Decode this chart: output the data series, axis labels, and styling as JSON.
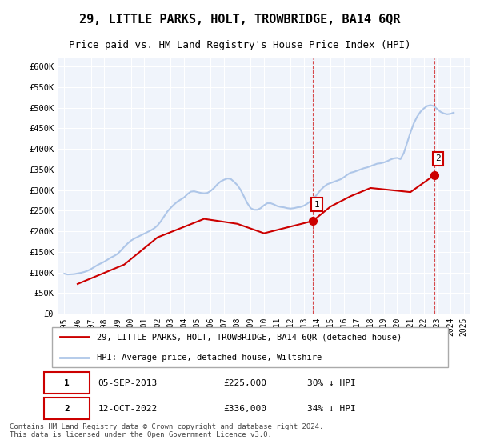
{
  "title": "29, LITTLE PARKS, HOLT, TROWBRIDGE, BA14 6QR",
  "subtitle": "Price paid vs. HM Land Registry's House Price Index (HPI)",
  "xlabel": "",
  "ylabel": "",
  "ylim": [
    0,
    620000
  ],
  "yticks": [
    0,
    50000,
    100000,
    150000,
    200000,
    250000,
    300000,
    350000,
    400000,
    450000,
    500000,
    550000,
    600000
  ],
  "ytick_labels": [
    "£0",
    "£50K",
    "£100K",
    "£150K",
    "£200K",
    "£250K",
    "£300K",
    "£350K",
    "£400K",
    "£450K",
    "£500K",
    "£550K",
    "£600K"
  ],
  "hpi_color": "#aec6e8",
  "property_color": "#cc0000",
  "background_color": "#ffffff",
  "plot_bg_color": "#f0f4fb",
  "grid_color": "#ffffff",
  "marker1_date_x": 2013.67,
  "marker1_y": 225000,
  "marker2_date_x": 2022.78,
  "marker2_y": 336000,
  "legend_property": "29, LITTLE PARKS, HOLT, TROWBRIDGE, BA14 6QR (detached house)",
  "legend_hpi": "HPI: Average price, detached house, Wiltshire",
  "annotation1": "05-SEP-2013    £225,000    30% ↓ HPI",
  "annotation2": "12-OCT-2022    £336,000    34% ↓ HPI",
  "footer": "Contains HM Land Registry data © Crown copyright and database right 2024.\nThis data is licensed under the Open Government Licence v3.0.",
  "dashed_vline1_x": 2013.67,
  "dashed_vline2_x": 2022.78,
  "hpi_data_x": [
    1995.0,
    1995.25,
    1995.5,
    1995.75,
    1996.0,
    1996.25,
    1996.5,
    1996.75,
    1997.0,
    1997.25,
    1997.5,
    1997.75,
    1998.0,
    1998.25,
    1998.5,
    1998.75,
    1999.0,
    1999.25,
    1999.5,
    1999.75,
    2000.0,
    2000.25,
    2000.5,
    2000.75,
    2001.0,
    2001.25,
    2001.5,
    2001.75,
    2002.0,
    2002.25,
    2002.5,
    2002.75,
    2003.0,
    2003.25,
    2003.5,
    2003.75,
    2004.0,
    2004.25,
    2004.5,
    2004.75,
    2005.0,
    2005.25,
    2005.5,
    2005.75,
    2006.0,
    2006.25,
    2006.5,
    2006.75,
    2007.0,
    2007.25,
    2007.5,
    2007.75,
    2008.0,
    2008.25,
    2008.5,
    2008.75,
    2009.0,
    2009.25,
    2009.5,
    2009.75,
    2010.0,
    2010.25,
    2010.5,
    2010.75,
    2011.0,
    2011.25,
    2011.5,
    2011.75,
    2012.0,
    2012.25,
    2012.5,
    2012.75,
    2013.0,
    2013.25,
    2013.5,
    2013.75,
    2014.0,
    2014.25,
    2014.5,
    2014.75,
    2015.0,
    2015.25,
    2015.5,
    2015.75,
    2016.0,
    2016.25,
    2016.5,
    2016.75,
    2017.0,
    2017.25,
    2017.5,
    2017.75,
    2018.0,
    2018.25,
    2018.5,
    2018.75,
    2019.0,
    2019.25,
    2019.5,
    2019.75,
    2020.0,
    2020.25,
    2020.5,
    2020.75,
    2021.0,
    2021.25,
    2021.5,
    2021.75,
    2022.0,
    2022.25,
    2022.5,
    2022.75,
    2023.0,
    2023.25,
    2023.5,
    2023.75,
    2024.0,
    2024.25
  ],
  "hpi_data_y": [
    97000,
    95000,
    95500,
    96000,
    97500,
    99000,
    101000,
    104000,
    108000,
    113000,
    118000,
    122000,
    126000,
    131000,
    136000,
    140000,
    145000,
    153000,
    162000,
    170000,
    177000,
    182000,
    186000,
    190000,
    194000,
    198000,
    202000,
    207000,
    214000,
    224000,
    236000,
    248000,
    257000,
    265000,
    272000,
    277000,
    282000,
    290000,
    296000,
    297000,
    295000,
    293000,
    292000,
    293000,
    298000,
    305000,
    314000,
    321000,
    325000,
    328000,
    327000,
    320000,
    312000,
    300000,
    284000,
    268000,
    256000,
    252000,
    252000,
    256000,
    263000,
    268000,
    268000,
    265000,
    261000,
    259000,
    258000,
    256000,
    255000,
    256000,
    258000,
    259000,
    262000,
    267000,
    273000,
    280000,
    290000,
    300000,
    308000,
    314000,
    317000,
    320000,
    323000,
    326000,
    331000,
    337000,
    342000,
    344000,
    347000,
    350000,
    353000,
    355000,
    358000,
    361000,
    364000,
    365000,
    367000,
    370000,
    374000,
    377000,
    378000,
    375000,
    390000,
    415000,
    440000,
    462000,
    478000,
    490000,
    498000,
    504000,
    506000,
    504000,
    497000,
    490000,
    486000,
    484000,
    485000,
    488000
  ],
  "property_data_x": [
    1996.0,
    1999.5,
    2002.0,
    2005.5,
    2008.0,
    2010.0,
    2013.67,
    2015.0,
    2016.5,
    2018.0,
    2019.5,
    2021.0,
    2022.78
  ],
  "property_data_y": [
    72000,
    119000,
    185000,
    230000,
    218000,
    195000,
    225000,
    260000,
    285000,
    305000,
    300000,
    295000,
    336000
  ],
  "xtick_years": [
    1995,
    1996,
    1997,
    1998,
    1999,
    2000,
    2001,
    2002,
    2003,
    2004,
    2005,
    2006,
    2007,
    2008,
    2009,
    2010,
    2011,
    2012,
    2013,
    2014,
    2015,
    2016,
    2017,
    2018,
    2019,
    2020,
    2021,
    2022,
    2023,
    2024,
    2025
  ]
}
